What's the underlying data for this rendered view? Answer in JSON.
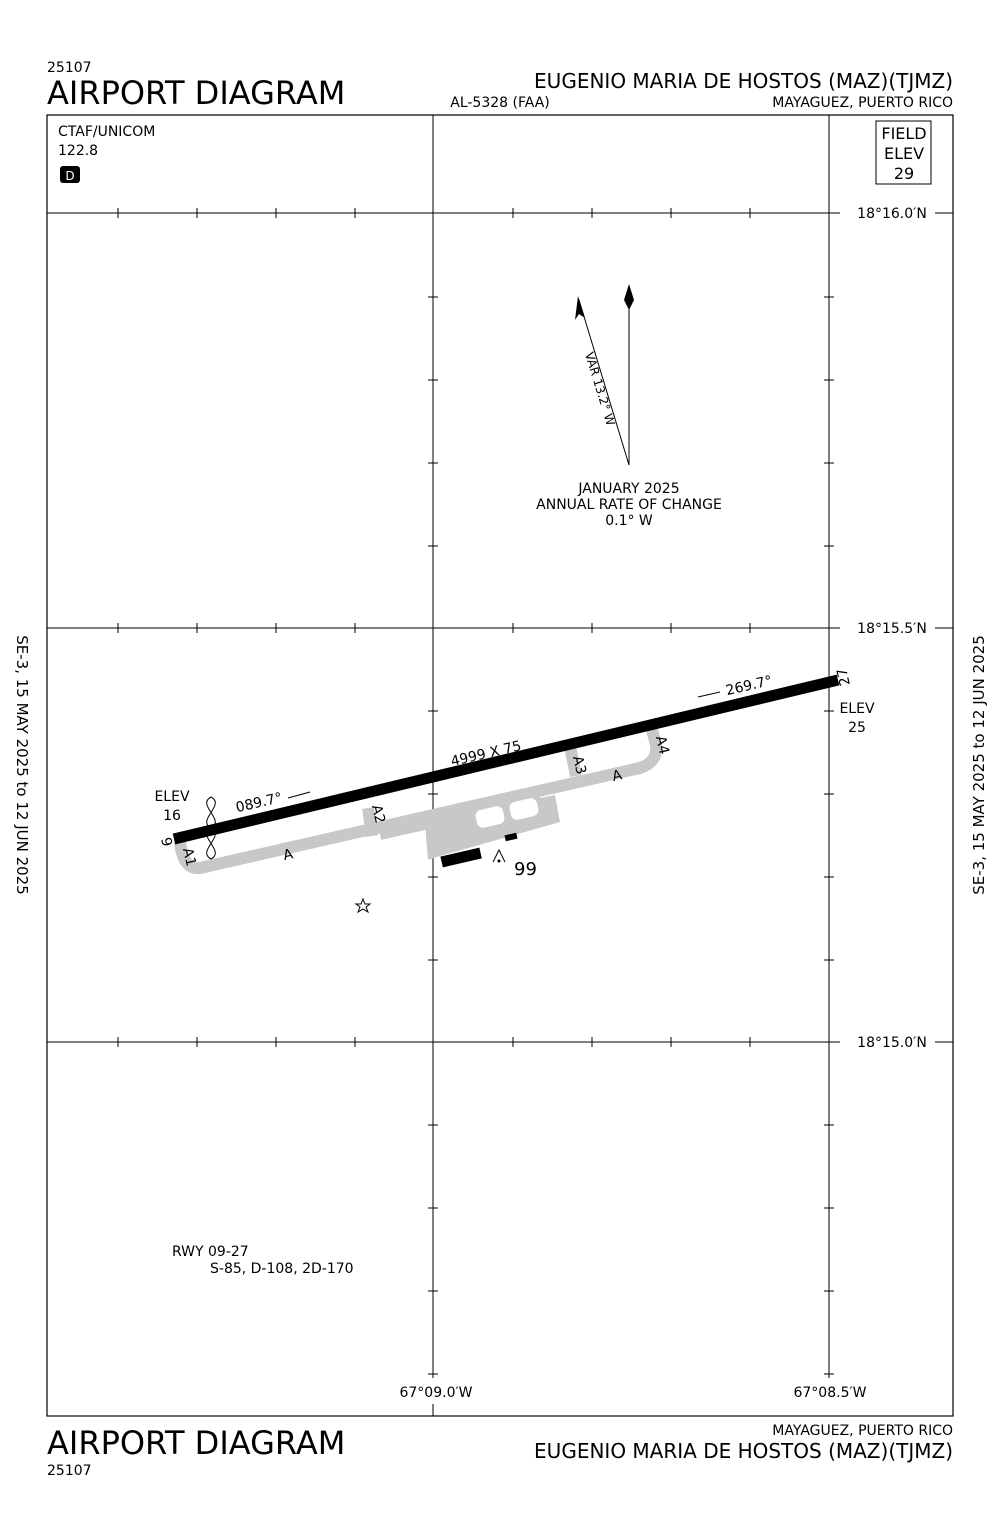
{
  "header": {
    "id": "25107",
    "title": "AIRPORT DIAGRAM",
    "airport": "EUGENIO MARIA DE HOSTOS (MAZ)(TJMZ)",
    "chart_number": "AL-5328 (FAA)",
    "location": "MAYAGUEZ, PUERTO RICO"
  },
  "info": {
    "ctaf_label": "CTAF/UNICOM",
    "ctaf_freq": "122.8",
    "atis_badge": "D",
    "field_elev_lines": [
      "FIELD",
      "ELEV",
      "29"
    ]
  },
  "magnetic": {
    "variation": "VAR 13.2° W",
    "date": "JANUARY 2025",
    "rate_label": "ANNUAL RATE OF CHANGE",
    "rate": "0.1° W"
  },
  "grid": {
    "latitudes": [
      "18°16.0′N",
      "18°15.5′N",
      "18°15.0′N"
    ],
    "longitudes": [
      "67°09.0′W",
      "67°08.5′W"
    ]
  },
  "runway": {
    "dimensions": "4999 X 75",
    "end_west": "9",
    "end_east": "27",
    "heading_west": "089.7°",
    "heading_east": "269.7°",
    "elev_west": [
      "ELEV",
      "16"
    ],
    "elev_east": [
      "ELEV",
      "25"
    ]
  },
  "taxiways": [
    "A",
    "A",
    "A1",
    "A2",
    "A3",
    "A4"
  ],
  "obstacle": "99",
  "effective": "SE-3,  15 MAY 2025  to  12 JUN 2025",
  "runway_info": [
    "RWY 09-27",
    "S-85, D-108, 2D-170"
  ],
  "footer": {
    "location": "MAYAGUEZ, PUERTO RICO",
    "airport": "EUGENIO MARIA DE HOSTOS (MAZ)(TJMZ)",
    "title": "AIRPORT DIAGRAM",
    "id": "25107"
  }
}
